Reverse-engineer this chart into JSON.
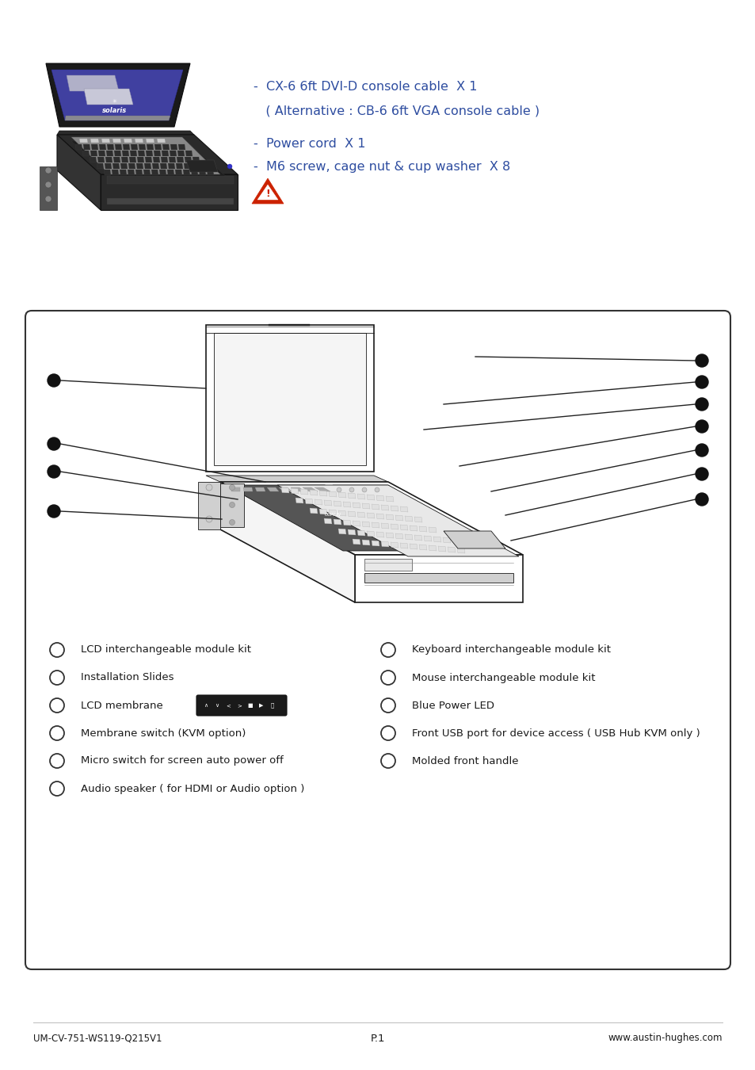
{
  "bg_color": "#ffffff",
  "text_color_blue": "#2E4DA0",
  "text_color_black": "#1a1a1a",
  "bullet_lines": [
    "-  CX-6 6ft DVI-D console cable  X 1",
    "   ( Alternative : CB-6 6ft VGA console cable )",
    "-  Power cord  X 1",
    "-  M6 screw, cage nut & cup washer  X 8"
  ],
  "left_labels": [
    "LCD interchangeable module kit",
    "Installation Slides",
    "LCD membrane",
    "Membrane switch (KVM option)",
    "Micro switch for screen auto power off",
    "Audio speaker ( for HDMI or Audio option )"
  ],
  "right_labels": [
    "Keyboard interchangeable module kit",
    "Mouse interchangeable module kit",
    "Blue Power LED",
    "Front USB port for device access ( USB Hub KVM only )",
    "Molded front handle",
    ""
  ],
  "footer_left": "UM-CV-751-WS119-Q215V1",
  "footer_center": "P.1",
  "footer_right": "www.austin-hughes.com"
}
